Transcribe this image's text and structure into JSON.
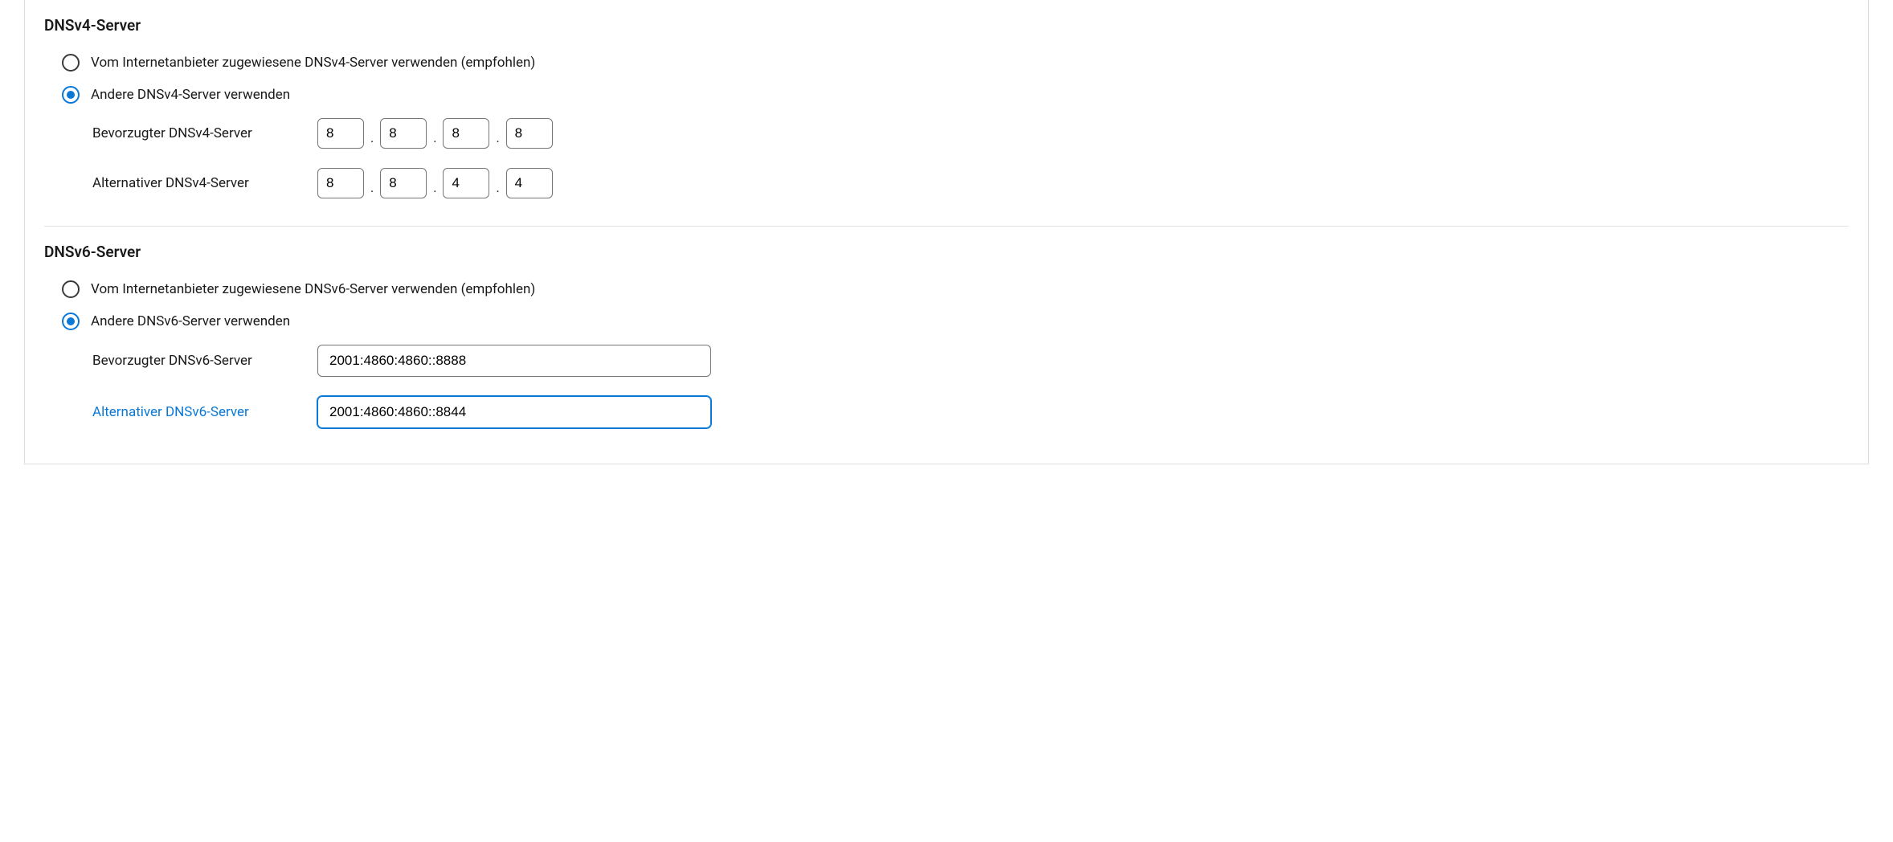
{
  "colors": {
    "accent": "#0a78d6",
    "border": "#767676",
    "text": "#1a1a1a",
    "divider": "#e2e2e2"
  },
  "dnsv4": {
    "heading": "DNSv4-Server",
    "option_isp": "Vom Internetanbieter zugewiesene DNSv4-Server verwenden (empfohlen)",
    "option_custom": "Andere DNSv4-Server verwenden",
    "selected": "custom",
    "preferred_label": "Bevorzugter DNSv4-Server",
    "preferred_octets": [
      "8",
      "8",
      "8",
      "8"
    ],
    "alternate_label": "Alternativer DNSv4-Server",
    "alternate_octets": [
      "8",
      "8",
      "4",
      "4"
    ]
  },
  "dnsv6": {
    "heading": "DNSv6-Server",
    "option_isp": "Vom Internetanbieter zugewiesene DNSv6-Server verwenden (empfohlen)",
    "option_custom": "Andere DNSv6-Server verwenden",
    "selected": "custom",
    "preferred_label": "Bevorzugter DNSv6-Server",
    "preferred_value": "2001:4860:4860::8888",
    "alternate_label": "Alternativer DNSv6-Server",
    "alternate_value": "2001:4860:4860::8844"
  }
}
